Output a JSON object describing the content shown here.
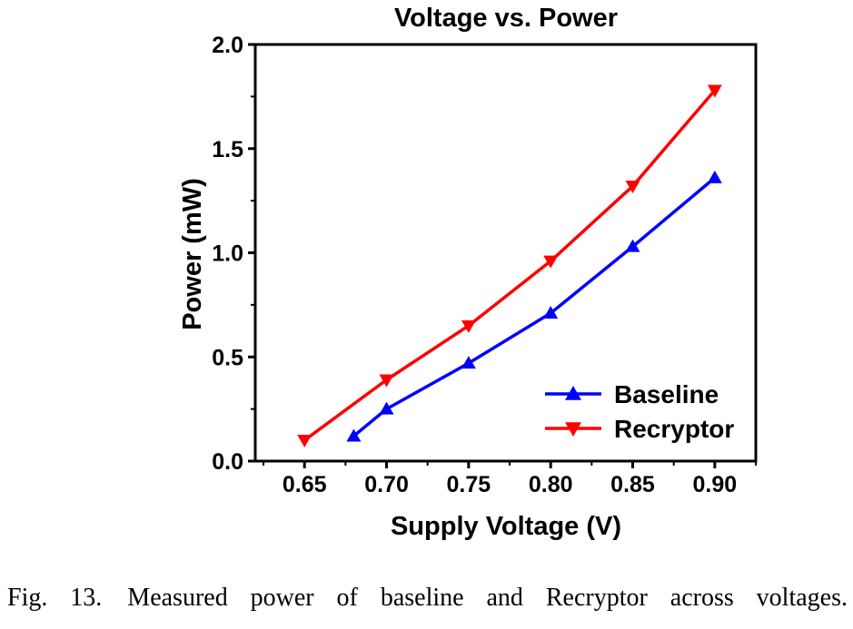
{
  "chart_data": {
    "type": "line",
    "title": "Voltage vs. Power",
    "xlabel": "Supply Voltage (V)",
    "ylabel": "Power (mW)",
    "xlim": [
      0.62,
      0.925
    ],
    "ylim": [
      0,
      2.0
    ],
    "xticks": [
      "0.65",
      "0.70",
      "0.75",
      "0.80",
      "0.85",
      "0.90"
    ],
    "yticks": [
      "0.0",
      "0.5",
      "1.0",
      "1.5",
      "2.0"
    ],
    "grid": false,
    "legend_position": "bottom-right",
    "series": [
      {
        "name": "Baseline",
        "color": "#0000ff",
        "marker": "triangle-up",
        "x": [
          0.68,
          0.7,
          0.75,
          0.8,
          0.85,
          0.9
        ],
        "y": [
          0.12,
          0.25,
          0.47,
          0.71,
          1.03,
          1.36
        ]
      },
      {
        "name": "Recryptor",
        "color": "#ff0000",
        "marker": "triangle-down",
        "x": [
          0.65,
          0.7,
          0.75,
          0.8,
          0.85,
          0.9
        ],
        "y": [
          0.1,
          0.39,
          0.65,
          0.96,
          1.32,
          1.78
        ]
      }
    ]
  },
  "caption": "Fig. 13. Measured power of baseline and Recryptor across voltages."
}
